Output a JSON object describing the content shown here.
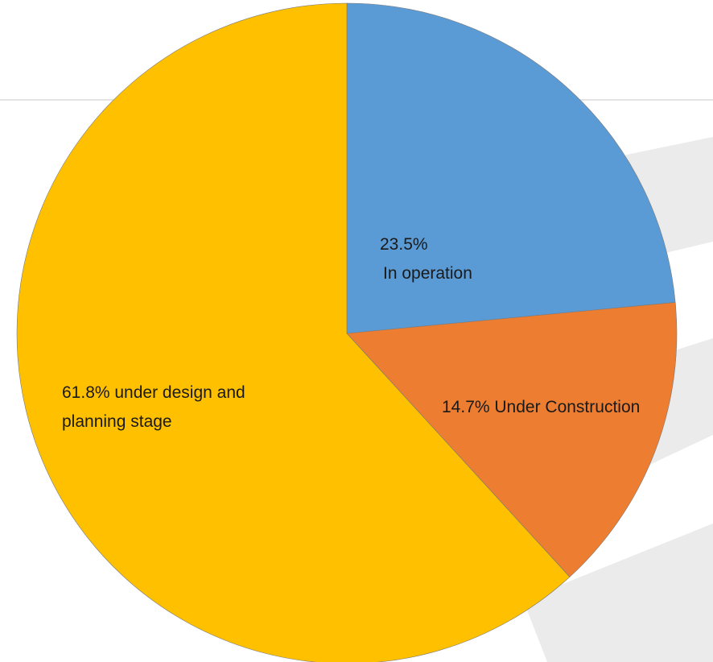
{
  "chart_data": {
    "type": "pie",
    "slices": [
      {
        "value": 23.5,
        "color": "#5B9BD5",
        "label_lines": [
          "23.5%",
          "In operation"
        ]
      },
      {
        "value": 14.7,
        "color": "#ED7D31",
        "label_lines": [
          "14.7% Under Construction"
        ]
      },
      {
        "value": 61.8,
        "color": "#FFC000",
        "label_lines": [
          "61.8% under design and",
          "planning  stage"
        ]
      }
    ],
    "start_angle": "12 o'clock",
    "direction": "clockwise",
    "legend": "none"
  }
}
